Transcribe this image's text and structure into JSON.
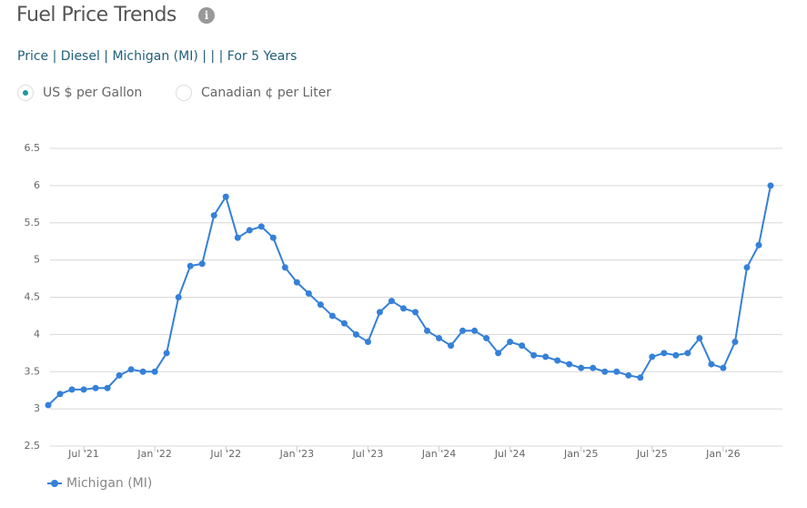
{
  "page": {
    "title": "Fuel Price Trends",
    "filter": "Price | Diesel | Michigan (MI) | | | For 5 Years",
    "units": [
      {
        "label": "US $ per Gallon",
        "selected": true
      },
      {
        "label": "Canadian ¢ per Liter",
        "selected": false
      }
    ]
  },
  "chart_data": {
    "type": "line",
    "x": [
      "2021-04",
      "2021-05",
      "2021-06",
      "2021-07",
      "2021-08",
      "2021-09",
      "2021-10",
      "2021-11",
      "2021-12",
      "2022-01",
      "2022-02",
      "2022-03",
      "2022-04",
      "2022-05",
      "2022-06",
      "2022-07",
      "2022-08",
      "2022-09",
      "2022-10",
      "2022-11",
      "2022-12",
      "2023-01",
      "2023-02",
      "2023-03",
      "2023-04",
      "2023-05",
      "2023-06",
      "2023-07",
      "2023-08",
      "2023-09",
      "2023-10",
      "2023-11",
      "2023-12",
      "2024-01",
      "2024-02",
      "2024-03",
      "2024-04",
      "2024-05",
      "2024-06",
      "2024-07",
      "2024-08",
      "2024-09",
      "2024-10",
      "2024-11",
      "2024-12",
      "2025-01",
      "2025-02",
      "2025-03",
      "2025-04",
      "2025-05",
      "2025-06",
      "2025-07",
      "2025-08",
      "2025-09",
      "2025-10",
      "2025-11",
      "2025-12",
      "2026-01",
      "2026-02",
      "2026-03",
      "2026-04",
      "2026-05"
    ],
    "series": [
      {
        "name": "Michigan (MI)",
        "color": "#3580d8",
        "values": [
          3.05,
          3.2,
          3.26,
          3.26,
          3.28,
          3.28,
          3.45,
          3.53,
          3.5,
          3.5,
          3.75,
          4.5,
          4.92,
          4.95,
          5.6,
          5.85,
          5.3,
          5.4,
          5.45,
          5.3,
          4.9,
          4.7,
          4.55,
          4.4,
          4.25,
          4.15,
          4.0,
          3.9,
          4.3,
          4.45,
          4.35,
          4.3,
          4.05,
          3.95,
          3.85,
          4.05,
          4.05,
          3.95,
          3.75,
          3.9,
          3.85,
          3.72,
          3.7,
          3.65,
          3.6,
          3.55,
          3.55,
          3.5,
          3.5,
          3.45,
          3.42,
          3.7,
          3.75,
          3.72,
          3.75,
          3.95,
          3.6,
          3.55,
          3.9,
          4.9,
          5.2,
          6.0
        ]
      }
    ],
    "xlim": [
      "2021-04",
      "2026-06"
    ],
    "xticks": [
      {
        "value": "2021-07",
        "label": "Jul '21"
      },
      {
        "value": "2022-01",
        "label": "Jan '22"
      },
      {
        "value": "2022-07",
        "label": "Jul '22"
      },
      {
        "value": "2023-01",
        "label": "Jan '23"
      },
      {
        "value": "2023-07",
        "label": "Jul '23"
      },
      {
        "value": "2024-01",
        "label": "Jan '24"
      },
      {
        "value": "2024-07",
        "label": "Jul '24"
      },
      {
        "value": "2025-01",
        "label": "Jan '25"
      },
      {
        "value": "2025-07",
        "label": "Jul '25"
      },
      {
        "value": "2026-01",
        "label": "Jan '26"
      }
    ],
    "ylim": [
      2.5,
      6.5
    ],
    "yticks": [
      2.5,
      3,
      3.5,
      4,
      4.5,
      5,
      5.5,
      6,
      6.5
    ],
    "grid": true,
    "legend": "bottom-left"
  }
}
